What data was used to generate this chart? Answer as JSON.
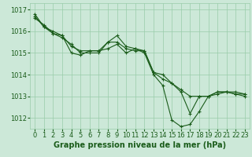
{
  "background_color": "#cce8d8",
  "grid_color": "#99ccaa",
  "line_color": "#1a5c1a",
  "xlabel": "Graphe pression niveau de la mer (hPa)",
  "xlabel_fontsize": 7,
  "tick_fontsize": 6,
  "ylim": [
    1011.5,
    1017.3
  ],
  "xlim": [
    -0.5,
    23.5
  ],
  "yticks": [
    1012,
    1013,
    1014,
    1015,
    1016,
    1017
  ],
  "xticks": [
    0,
    1,
    2,
    3,
    4,
    5,
    6,
    7,
    8,
    9,
    10,
    11,
    12,
    13,
    14,
    15,
    16,
    17,
    18,
    19,
    20,
    21,
    22,
    23
  ],
  "series": [
    [
      1016.8,
      1016.2,
      1016.0,
      1015.8,
      1015.0,
      1014.9,
      1015.1,
      1015.1,
      1015.2,
      1015.4,
      1015.0,
      1015.2,
      1015.1,
      1014.1,
      1013.8,
      1013.6,
      1013.3,
      1013.0,
      1013.0,
      1013.0,
      1013.1,
      1013.2,
      1013.1,
      1013.1
    ],
    [
      1016.7,
      1016.2,
      1015.9,
      1015.8,
      1015.3,
      1015.1,
      1015.1,
      1015.1,
      1015.5,
      1015.5,
      1015.2,
      1015.1,
      1015.1,
      1014.1,
      1014.0,
      1013.6,
      1013.2,
      1012.2,
      1013.0,
      1013.0,
      1013.2,
      1013.2,
      1013.1,
      1013.0
    ],
    [
      1016.6,
      1016.3,
      1015.9,
      1015.7,
      1015.4,
      1015.0,
      1015.0,
      1015.0,
      1015.5,
      1015.8,
      1015.3,
      1015.2,
      1015.0,
      1014.0,
      1013.5,
      1011.9,
      1011.6,
      1011.7,
      1012.3,
      1013.0,
      1013.2,
      1013.2,
      1013.2,
      1013.1
    ]
  ]
}
